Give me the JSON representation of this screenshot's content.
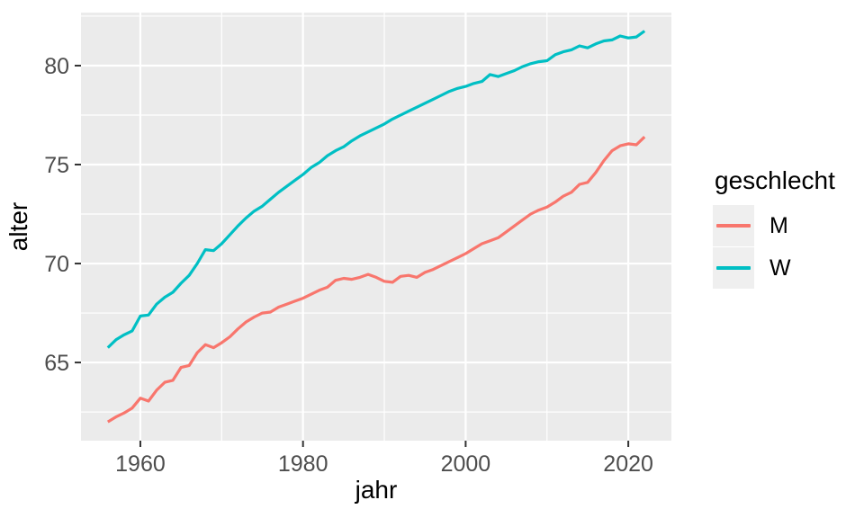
{
  "chart_data": {
    "type": "line",
    "title": "",
    "xlabel": "jahr",
    "ylabel": "alter",
    "x_domain": [
      1952.7,
      2025.3
    ],
    "y_domain": [
      61.05,
      82.68
    ],
    "x_major_ticks": [
      1960,
      1980,
      2000,
      2020
    ],
    "x_minor_ticks": [
      1970,
      1990,
      2010
    ],
    "y_major_ticks": [
      65,
      70,
      75,
      80
    ],
    "y_minor_ticks": [
      62.5,
      67.5,
      72.5,
      77.5,
      82.5
    ],
    "grid": "on",
    "legend_position": "right",
    "panel_bg": "#EBEBEB",
    "grid_color": "#FFFFFF",
    "tick_mark_color": "#333333",
    "tick_label_color": "#4D4D4D",
    "axis_title_color": "#000000",
    "x": [
      1956,
      1957,
      1958,
      1959,
      1960,
      1961,
      1962,
      1963,
      1964,
      1965,
      1966,
      1967,
      1968,
      1969,
      1970,
      1971,
      1972,
      1973,
      1974,
      1975,
      1976,
      1977,
      1978,
      1979,
      1980,
      1981,
      1982,
      1983,
      1984,
      1985,
      1986,
      1987,
      1988,
      1989,
      1990,
      1991,
      1992,
      1993,
      1994,
      1995,
      1996,
      1997,
      1998,
      1999,
      2000,
      2001,
      2002,
      2003,
      2004,
      2005,
      2006,
      2007,
      2008,
      2009,
      2010,
      2011,
      2012,
      2013,
      2014,
      2015,
      2016,
      2017,
      2018,
      2019,
      2020,
      2021,
      2022
    ],
    "series": [
      {
        "name": "M",
        "color": "#F8766D",
        "values": [
          62.0,
          62.25,
          62.45,
          62.7,
          63.2,
          63.05,
          63.6,
          64.0,
          64.1,
          64.75,
          64.85,
          65.5,
          65.9,
          65.75,
          66.0,
          66.3,
          66.7,
          67.05,
          67.3,
          67.5,
          67.55,
          67.8,
          67.95,
          68.1,
          68.25,
          68.45,
          68.65,
          68.8,
          69.15,
          69.25,
          69.2,
          69.3,
          69.45,
          69.3,
          69.1,
          69.05,
          69.35,
          69.4,
          69.3,
          69.55,
          69.7,
          69.9,
          70.1,
          70.3,
          70.5,
          70.75,
          71.0,
          71.15,
          71.3,
          71.6,
          71.9,
          72.2,
          72.5,
          72.7,
          72.85,
          73.1,
          73.4,
          73.6,
          74.0,
          74.1,
          74.6,
          75.2,
          75.7,
          75.95,
          76.05,
          76.0,
          76.4
        ]
      },
      {
        "name": "W",
        "color": "#00BFC4",
        "values": [
          65.75,
          66.15,
          66.4,
          66.6,
          67.35,
          67.4,
          67.95,
          68.3,
          68.55,
          69.0,
          69.4,
          70.0,
          70.7,
          70.65,
          71.0,
          71.45,
          71.9,
          72.3,
          72.65,
          72.9,
          73.25,
          73.6,
          73.9,
          74.2,
          74.5,
          74.85,
          75.1,
          75.45,
          75.7,
          75.9,
          76.2,
          76.45,
          76.65,
          76.85,
          77.05,
          77.3,
          77.5,
          77.7,
          77.9,
          78.1,
          78.3,
          78.5,
          78.7,
          78.85,
          78.95,
          79.1,
          79.2,
          79.55,
          79.45,
          79.6,
          79.75,
          79.95,
          80.1,
          80.2,
          80.25,
          80.55,
          80.7,
          80.8,
          81.0,
          80.9,
          81.1,
          81.25,
          81.3,
          81.5,
          81.4,
          81.45,
          81.75
        ]
      }
    ],
    "legend": {
      "title": "geschlecht",
      "key_bg": "#EFEFEF",
      "entries": [
        {
          "label": "M",
          "color": "#F8766D"
        },
        {
          "label": "W",
          "color": "#00BFC4"
        }
      ]
    }
  }
}
